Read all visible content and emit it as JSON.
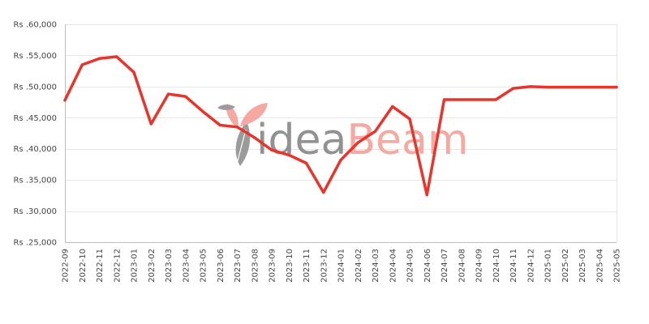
{
  "chart_data": {
    "type": "line",
    "title": "",
    "xlabel": "",
    "ylabel": "",
    "ylim": [
      25000,
      60000
    ],
    "grid": true,
    "legend": "none",
    "y_ticks": [
      25000,
      30000,
      35000,
      40000,
      45000,
      50000,
      55000,
      60000
    ],
    "y_tick_labels": [
      "Rs .25,000",
      "Rs .30,000",
      "Rs .35,000",
      "Rs .40,000",
      "Rs .45,000",
      "Rs .50,000",
      "Rs .55,000",
      "Rs .60,000"
    ],
    "x_ticks": [
      "2022-09",
      "2022-10",
      "2022-11",
      "2022-12",
      "2023-01",
      "2023-02",
      "2023-03",
      "2023-04",
      "2023-05",
      "2023-06",
      "2023-07",
      "2023-08",
      "2023-09",
      "2023-10",
      "2023-11",
      "2023-12",
      "2024-01",
      "2024-02",
      "2024-03",
      "2024-04",
      "2024-05",
      "2024-06",
      "2024-07",
      "2024-08",
      "2024-09",
      "2024-10",
      "2024-11",
      "2024-12",
      "2025-01",
      "2025-02",
      "2025-03",
      "2025-04",
      "2025-05"
    ],
    "series": [
      {
        "color": "#e8342a",
        "points": [
          {
            "x": "2022-09",
            "y": 47800
          },
          {
            "x": "2022-10",
            "y": 53500
          },
          {
            "x": "2022-11",
            "y": 54500
          },
          {
            "x": "2022-12",
            "y": 54800
          },
          {
            "x": "2023-01",
            "y": 52300
          },
          {
            "x": "2023-02",
            "y": 44000
          },
          {
            "x": "2023-03",
            "y": 48800
          },
          {
            "x": "2023-04",
            "y": 48400
          },
          {
            "x": "2023-05",
            "y": 46000
          },
          {
            "x": "2023-06",
            "y": 43800
          },
          {
            "x": "2023-07",
            "y": 43500
          },
          {
            "x": "2023-08",
            "y": 41800
          },
          {
            "x": "2023-09",
            "y": 39800
          },
          {
            "x": "2023-10",
            "y": 39000
          },
          {
            "x": "2023-11",
            "y": 37700
          },
          {
            "x": "2023-12",
            "y": 33000
          },
          {
            "x": "2024-01",
            "y": 38200
          },
          {
            "x": "2024-02",
            "y": 41000
          },
          {
            "x": "2024-03",
            "y": 42800
          },
          {
            "x": "2024-04",
            "y": 46800
          },
          {
            "x": "2024-05",
            "y": 44800
          },
          {
            "x": "2024-06",
            "y": 32600
          },
          {
            "x": "2024-07",
            "y": 47900
          },
          {
            "x": "2024-08",
            "y": 47900
          },
          {
            "x": "2024-09",
            "y": 47900
          },
          {
            "x": "2024-10",
            "y": 47900
          },
          {
            "x": "2024-11",
            "y": 49700
          },
          {
            "x": "2024-12",
            "y": 50000
          },
          {
            "x": "2025-01",
            "y": 49900
          },
          {
            "x": "2025-02",
            "y": 49900
          },
          {
            "x": "2025-03",
            "y": 49900
          },
          {
            "x": "2025-04",
            "y": 49900
          },
          {
            "x": "2025-05",
            "y": 49900
          }
        ]
      }
    ]
  },
  "watermark": {
    "part1": "idea",
    "part2": "Beam",
    "part1_color": "#808080",
    "part2_color": "#f39b93"
  }
}
